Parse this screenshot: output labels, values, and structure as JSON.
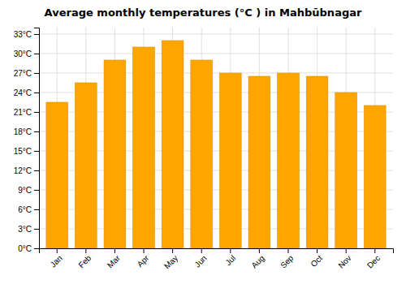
{
  "chart_data": {
    "type": "bar",
    "title": "Average monthly temperatures (°C ) in Mahbūbnagar",
    "categories": [
      "Jan",
      "Feb",
      "Mar",
      "Apr",
      "May",
      "Jun",
      "Jul",
      "Aug",
      "Sep",
      "Oct",
      "Nov",
      "Dec"
    ],
    "values": [
      22.5,
      25.5,
      29.0,
      31.0,
      32.0,
      29.0,
      27.0,
      26.5,
      27.0,
      26.5,
      24.0,
      22.0
    ],
    "color": "#FFA500",
    "ylim": [
      0,
      34
    ],
    "yticks": [
      {
        "value": 0,
        "label": "0°C"
      },
      {
        "value": 3,
        "label": "3°C"
      },
      {
        "value": 6,
        "label": "6°C"
      },
      {
        "value": 9,
        "label": "9°C"
      },
      {
        "value": 12,
        "label": "12°C"
      },
      {
        "value": 15,
        "label": "15°C"
      },
      {
        "value": 18,
        "label": "18°C"
      },
      {
        "value": 21,
        "label": "21°C"
      },
      {
        "value": 24,
        "label": "24°C"
      },
      {
        "value": 27,
        "label": "27°C"
      },
      {
        "value": 30,
        "label": "30°C"
      },
      {
        "value": 33,
        "label": "33°C"
      }
    ],
    "grid": true
  }
}
